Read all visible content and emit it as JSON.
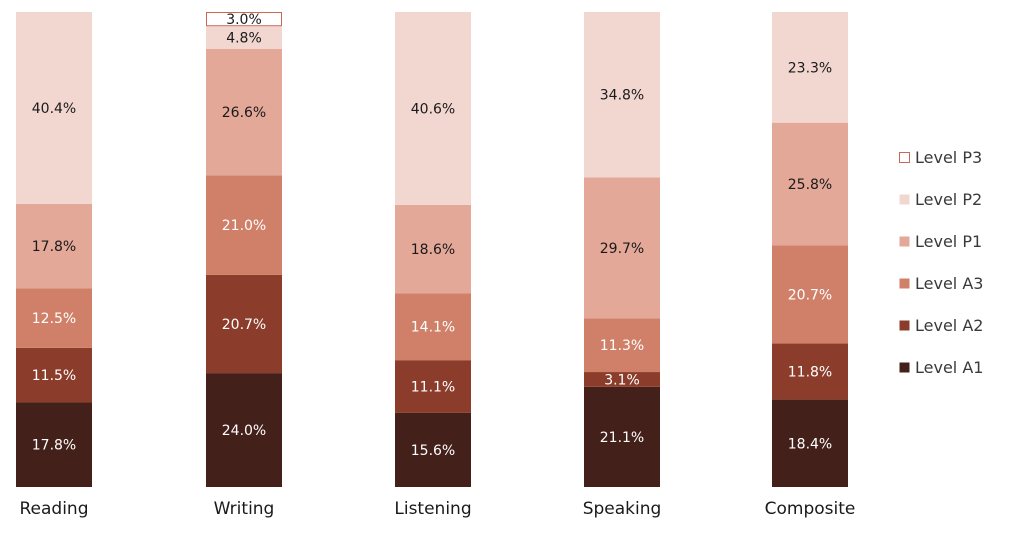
{
  "chart_data": {
    "type": "bar",
    "stacked": true,
    "normalized": true,
    "categories": [
      "Reading",
      "Writing",
      "Listening",
      "Speaking",
      "Composite"
    ],
    "series": [
      {
        "name": "Level A1",
        "color": "#43201a",
        "label_color": "#ffffff",
        "values": [
          17.8,
          24.0,
          15.6,
          21.1,
          18.4
        ]
      },
      {
        "name": "Level A2",
        "color": "#8b3c2b",
        "label_color": "#ffffff",
        "values": [
          11.5,
          20.7,
          11.1,
          3.1,
          11.8
        ]
      },
      {
        "name": "Level A3",
        "color": "#d08068",
        "label_color": "#ffffff",
        "values": [
          12.5,
          21.0,
          14.1,
          11.3,
          20.7
        ]
      },
      {
        "name": "Level P1",
        "color": "#e3a898",
        "label_color": "#1a1a1a",
        "values": [
          17.8,
          26.6,
          18.6,
          29.7,
          25.8
        ]
      },
      {
        "name": "Level P2",
        "color": "#f2d7d1",
        "label_color": "#1a1a1a",
        "values": [
          40.4,
          4.8,
          40.6,
          34.8,
          23.3
        ]
      },
      {
        "name": "Level P3",
        "color": "#ffffff",
        "stroke": "#c46a55",
        "label_color": "#1a1a1a",
        "values": [
          null,
          3.0,
          null,
          null,
          null
        ]
      }
    ],
    "value_format": "percent_one_decimal",
    "ylim": [
      0,
      100
    ],
    "grid": false,
    "legend_position": "right",
    "legend_order": [
      "Level P3",
      "Level P2",
      "Level P1",
      "Level A3",
      "Level A2",
      "Level A1"
    ]
  }
}
